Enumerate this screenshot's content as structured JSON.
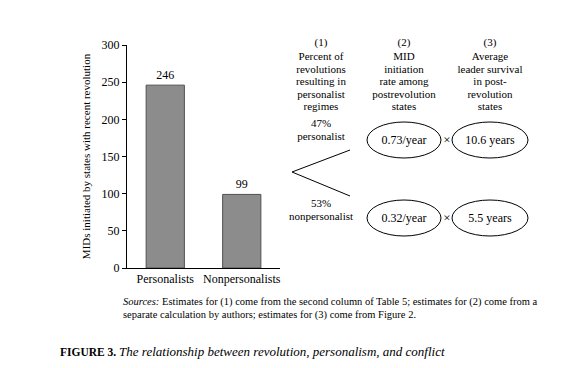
{
  "chart_data": {
    "type": "bar",
    "categories": [
      "Personalists",
      "Nonpersonalists"
    ],
    "values": [
      246,
      99
    ],
    "color": "#8c8c8c",
    "ylabel": "MIDs initiated by states with recent revolution",
    "ylim": [
      0,
      300
    ],
    "yticks": [
      0,
      50,
      100,
      150,
      200,
      250,
      300
    ],
    "grid": false,
    "data_labels": true
  },
  "diagram": {
    "columns": [
      {
        "number": "(1)",
        "header": [
          "Percent of",
          "revolutions",
          "resulting in",
          "personalist",
          "regimes"
        ]
      },
      {
        "number": "(2)",
        "header": [
          "MID",
          "initiation",
          "rate among",
          "postrevolution",
          "states"
        ]
      },
      {
        "number": "(3)",
        "header": [
          "Average",
          "leader survival",
          "in post-",
          "revolution",
          "states"
        ]
      }
    ],
    "branches": [
      {
        "label": [
          "47%",
          "personalist"
        ],
        "rate": "0.73/year",
        "survival": "10.6 years"
      },
      {
        "label": [
          "53%",
          "nonpersonalist"
        ],
        "rate": "0.32/year",
        "survival": "5.5 years"
      }
    ],
    "operator": "×"
  },
  "sources": {
    "lead": "Sources:",
    "lines": [
      "Estimates for (1) come from the second column of Table 5; estimates for (2) come from a",
      "separate calculation by authors; estimates for (3) come from Figure 2."
    ]
  },
  "caption": {
    "label": "FIGURE 3.",
    "text": "The relationship between revolution, personalism, and conflict"
  }
}
